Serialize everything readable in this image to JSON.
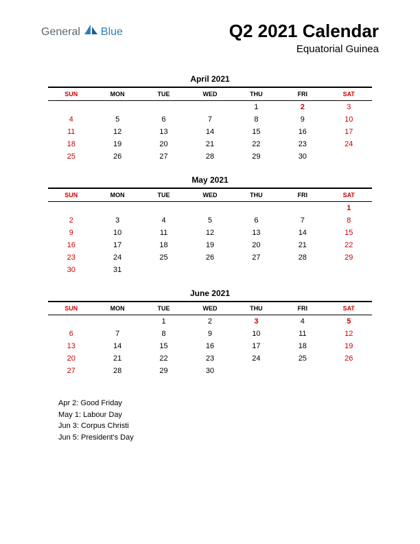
{
  "logo": {
    "part1": "General",
    "part2": "Blue"
  },
  "header": {
    "title": "Q2 2021 Calendar",
    "subtitle": "Equatorial Guinea"
  },
  "day_headers": [
    "SUN",
    "MON",
    "TUE",
    "WED",
    "THU",
    "FRI",
    "SAT"
  ],
  "colors": {
    "weekend": "#cc0000",
    "weekday": "#000000",
    "accent_blue": "#2a7fba",
    "logo_gray": "#5a6670"
  },
  "months": [
    {
      "title": "April 2021",
      "weeks": [
        [
          null,
          null,
          null,
          null,
          {
            "d": 1,
            "t": "wd"
          },
          {
            "d": 2,
            "t": "hol"
          },
          {
            "d": 3,
            "t": "we"
          }
        ],
        [
          {
            "d": 4,
            "t": "we"
          },
          {
            "d": 5,
            "t": "wd"
          },
          {
            "d": 6,
            "t": "wd"
          },
          {
            "d": 7,
            "t": "wd"
          },
          {
            "d": 8,
            "t": "wd"
          },
          {
            "d": 9,
            "t": "wd"
          },
          {
            "d": 10,
            "t": "we"
          }
        ],
        [
          {
            "d": 11,
            "t": "we"
          },
          {
            "d": 12,
            "t": "wd"
          },
          {
            "d": 13,
            "t": "wd"
          },
          {
            "d": 14,
            "t": "wd"
          },
          {
            "d": 15,
            "t": "wd"
          },
          {
            "d": 16,
            "t": "wd"
          },
          {
            "d": 17,
            "t": "we"
          }
        ],
        [
          {
            "d": 18,
            "t": "we"
          },
          {
            "d": 19,
            "t": "wd"
          },
          {
            "d": 20,
            "t": "wd"
          },
          {
            "d": 21,
            "t": "wd"
          },
          {
            "d": 22,
            "t": "wd"
          },
          {
            "d": 23,
            "t": "wd"
          },
          {
            "d": 24,
            "t": "we"
          }
        ],
        [
          {
            "d": 25,
            "t": "we"
          },
          {
            "d": 26,
            "t": "wd"
          },
          {
            "d": 27,
            "t": "wd"
          },
          {
            "d": 28,
            "t": "wd"
          },
          {
            "d": 29,
            "t": "wd"
          },
          {
            "d": 30,
            "t": "wd"
          },
          null
        ]
      ]
    },
    {
      "title": "May 2021",
      "weeks": [
        [
          null,
          null,
          null,
          null,
          null,
          null,
          {
            "d": 1,
            "t": "hol"
          }
        ],
        [
          {
            "d": 2,
            "t": "we"
          },
          {
            "d": 3,
            "t": "wd"
          },
          {
            "d": 4,
            "t": "wd"
          },
          {
            "d": 5,
            "t": "wd"
          },
          {
            "d": 6,
            "t": "wd"
          },
          {
            "d": 7,
            "t": "wd"
          },
          {
            "d": 8,
            "t": "we"
          }
        ],
        [
          {
            "d": 9,
            "t": "we"
          },
          {
            "d": 10,
            "t": "wd"
          },
          {
            "d": 11,
            "t": "wd"
          },
          {
            "d": 12,
            "t": "wd"
          },
          {
            "d": 13,
            "t": "wd"
          },
          {
            "d": 14,
            "t": "wd"
          },
          {
            "d": 15,
            "t": "we"
          }
        ],
        [
          {
            "d": 16,
            "t": "we"
          },
          {
            "d": 17,
            "t": "wd"
          },
          {
            "d": 18,
            "t": "wd"
          },
          {
            "d": 19,
            "t": "wd"
          },
          {
            "d": 20,
            "t": "wd"
          },
          {
            "d": 21,
            "t": "wd"
          },
          {
            "d": 22,
            "t": "we"
          }
        ],
        [
          {
            "d": 23,
            "t": "we"
          },
          {
            "d": 24,
            "t": "wd"
          },
          {
            "d": 25,
            "t": "wd"
          },
          {
            "d": 26,
            "t": "wd"
          },
          {
            "d": 27,
            "t": "wd"
          },
          {
            "d": 28,
            "t": "wd"
          },
          {
            "d": 29,
            "t": "we"
          }
        ],
        [
          {
            "d": 30,
            "t": "we"
          },
          {
            "d": 31,
            "t": "wd"
          },
          null,
          null,
          null,
          null,
          null
        ]
      ]
    },
    {
      "title": "June 2021",
      "weeks": [
        [
          null,
          null,
          {
            "d": 1,
            "t": "wd"
          },
          {
            "d": 2,
            "t": "wd"
          },
          {
            "d": 3,
            "t": "hol"
          },
          {
            "d": 4,
            "t": "wd"
          },
          {
            "d": 5,
            "t": "hol"
          }
        ],
        [
          {
            "d": 6,
            "t": "we"
          },
          {
            "d": 7,
            "t": "wd"
          },
          {
            "d": 8,
            "t": "wd"
          },
          {
            "d": 9,
            "t": "wd"
          },
          {
            "d": 10,
            "t": "wd"
          },
          {
            "d": 11,
            "t": "wd"
          },
          {
            "d": 12,
            "t": "we"
          }
        ],
        [
          {
            "d": 13,
            "t": "we"
          },
          {
            "d": 14,
            "t": "wd"
          },
          {
            "d": 15,
            "t": "wd"
          },
          {
            "d": 16,
            "t": "wd"
          },
          {
            "d": 17,
            "t": "wd"
          },
          {
            "d": 18,
            "t": "wd"
          },
          {
            "d": 19,
            "t": "we"
          }
        ],
        [
          {
            "d": 20,
            "t": "we"
          },
          {
            "d": 21,
            "t": "wd"
          },
          {
            "d": 22,
            "t": "wd"
          },
          {
            "d": 23,
            "t": "wd"
          },
          {
            "d": 24,
            "t": "wd"
          },
          {
            "d": 25,
            "t": "wd"
          },
          {
            "d": 26,
            "t": "we"
          }
        ],
        [
          {
            "d": 27,
            "t": "we"
          },
          {
            "d": 28,
            "t": "wd"
          },
          {
            "d": 29,
            "t": "wd"
          },
          {
            "d": 30,
            "t": "wd"
          },
          null,
          null,
          null
        ]
      ]
    }
  ],
  "holidays": [
    "Apr 2: Good Friday",
    "May 1: Labour Day",
    "Jun 3: Corpus Christi",
    "Jun 5: President's Day"
  ]
}
